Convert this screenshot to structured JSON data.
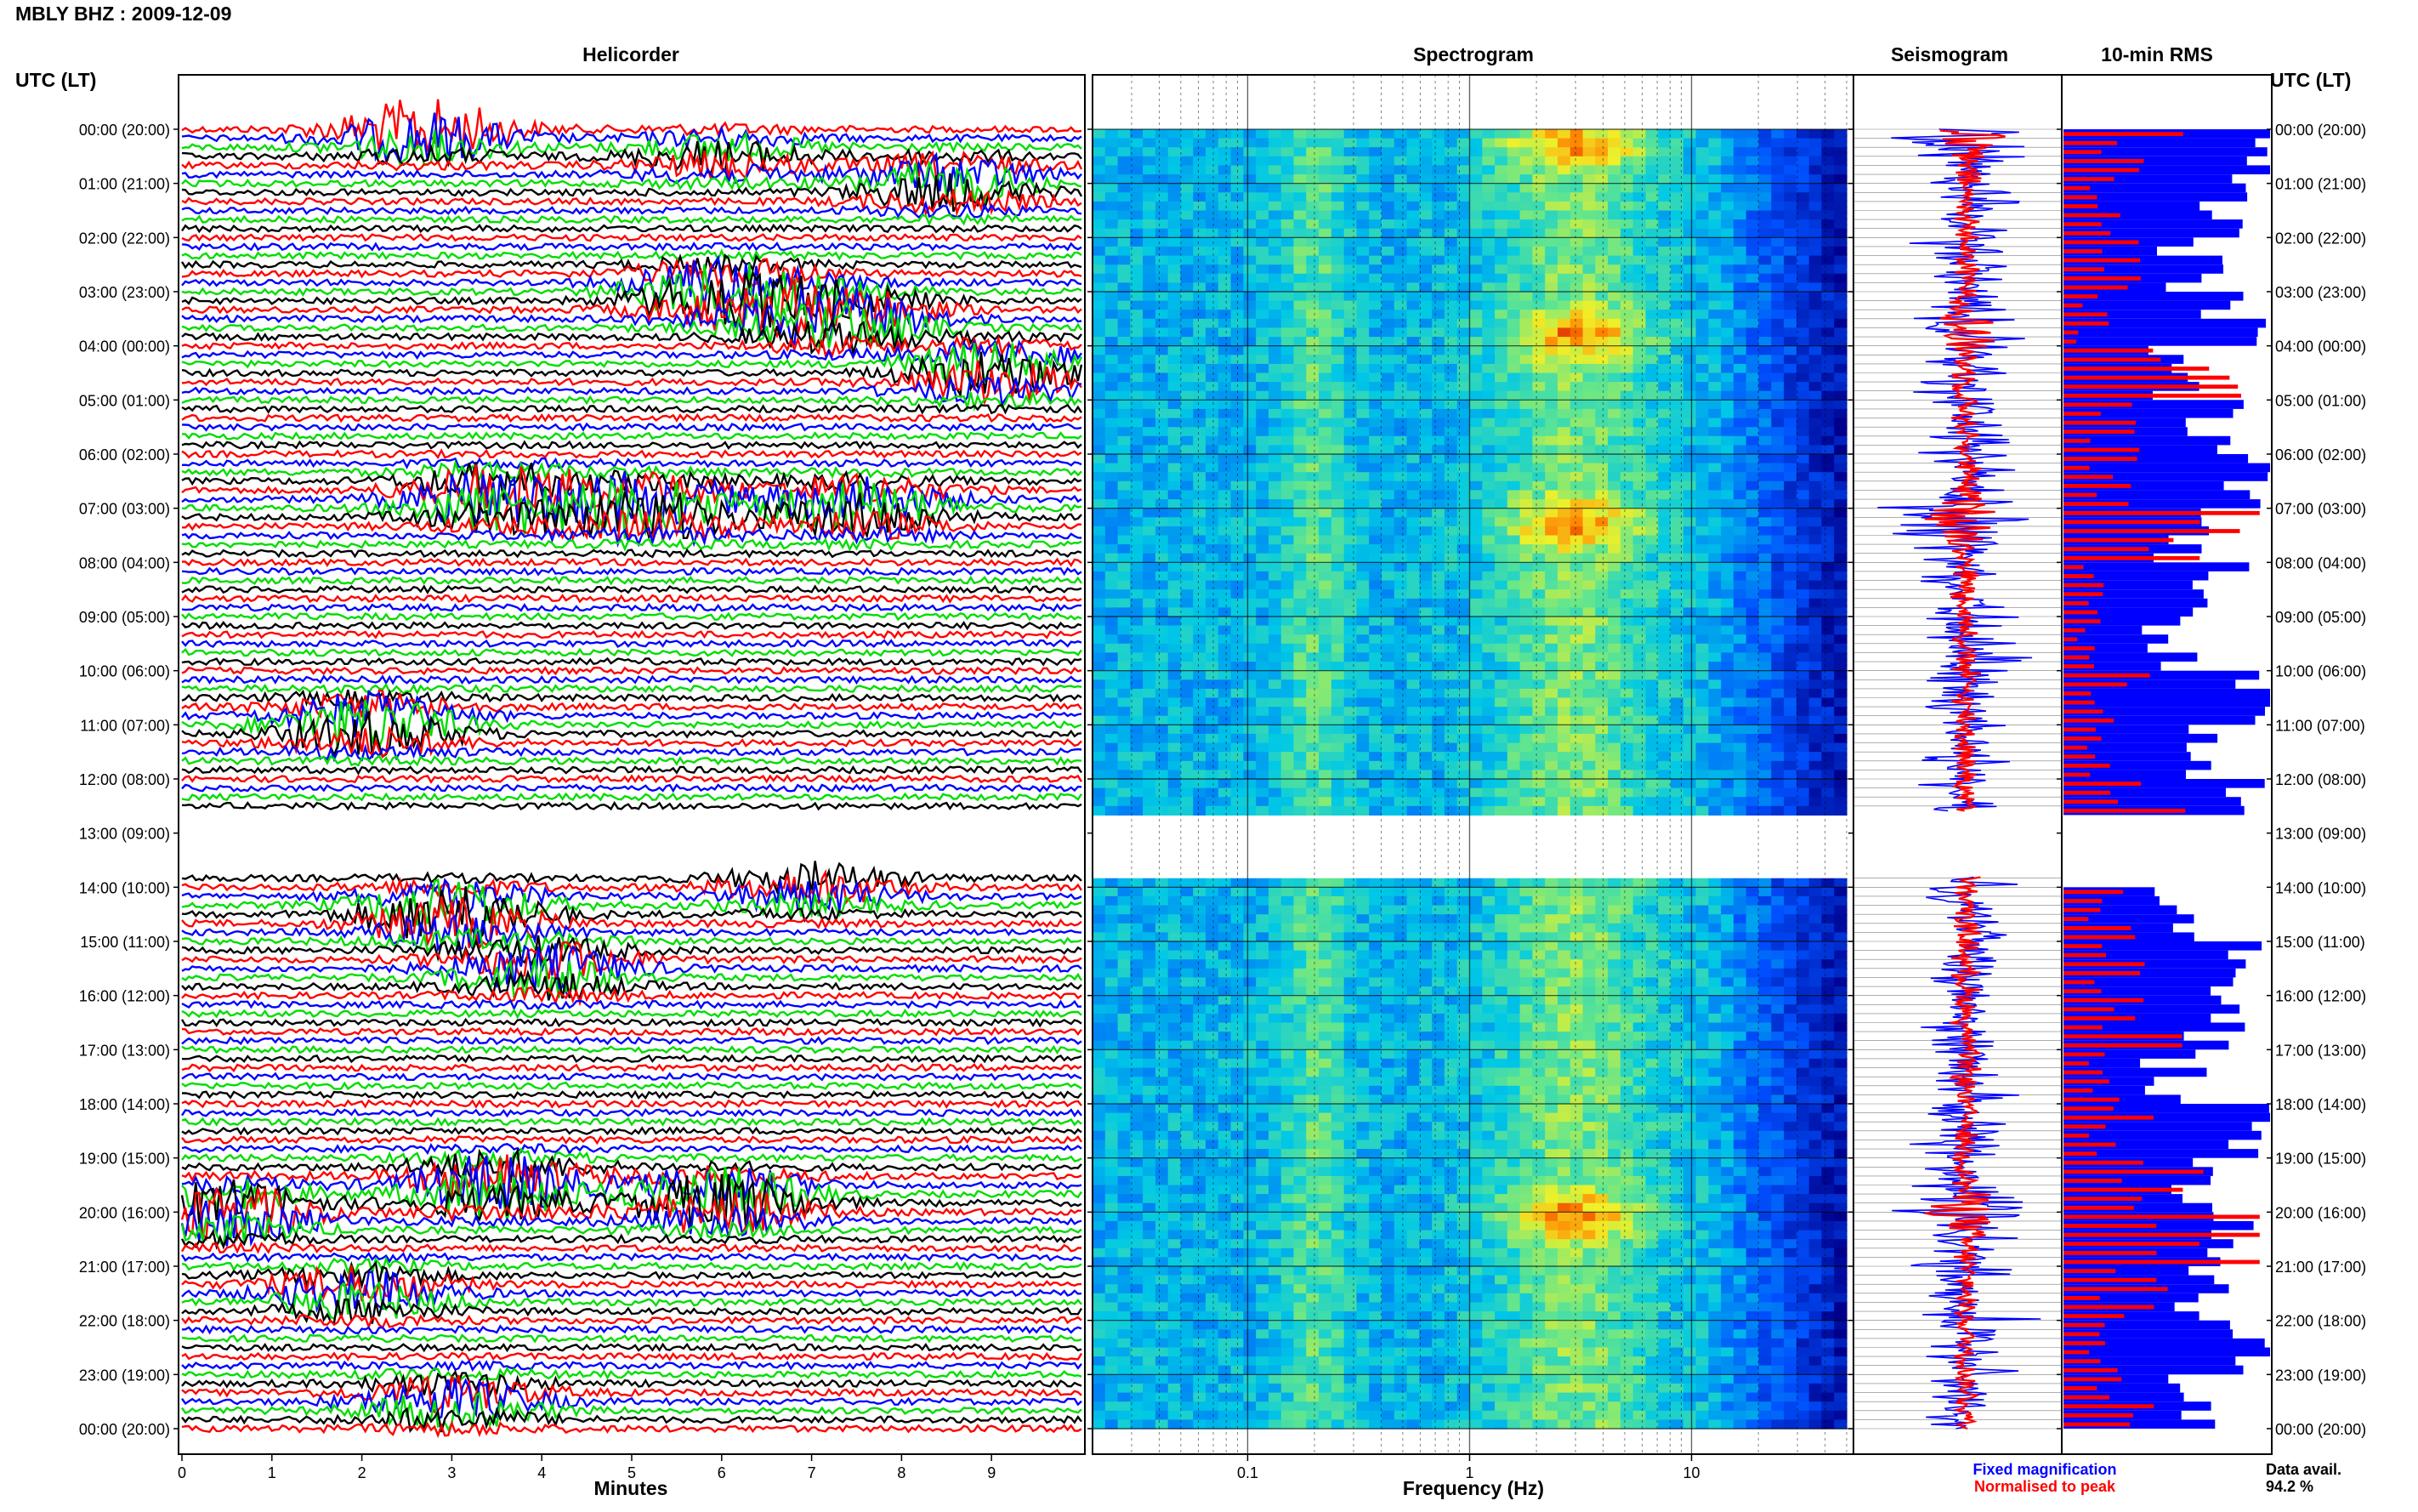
{
  "title": "MBLY BHZ : 2009-12-09",
  "panels": {
    "helicorder": "Helicorder",
    "spectrogram": "Spectrogram",
    "seismogram": "Seismogram",
    "rms": "10-min RMS"
  },
  "utc_label": "UTC (LT)",
  "x_labels": {
    "helicorder": "Minutes",
    "spectrogram": "Frequency (Hz)"
  },
  "legend": {
    "fixed": "Fixed magnification",
    "normalised": "Normalised to peak",
    "data_avail_label": "Data avail.",
    "data_avail_value": "94.2 %"
  },
  "colors": {
    "trace_cycle": [
      "#ff0000",
      "#0000ff",
      "#00dd00",
      "#000000"
    ],
    "fixed": "#0000ff",
    "normalised": "#ff0000"
  },
  "chart_data": [
    {
      "type": "line",
      "panel": "Helicorder",
      "xlabel": "Minutes",
      "xlim": [
        0,
        10
      ],
      "x_ticks": [
        "0",
        "1",
        "2",
        "3",
        "4",
        "5",
        "6",
        "7",
        "8",
        "9"
      ],
      "y_ticks": [
        "00:00 (20:00)",
        "01:00 (21:00)",
        "02:00 (22:00)",
        "03:00 (23:00)",
        "04:00 (00:00)",
        "05:00 (01:00)",
        "06:00 (02:00)",
        "07:00 (03:00)",
        "08:00 (04:00)",
        "09:00 (05:00)",
        "10:00 (06:00)",
        "11:00 (07:00)",
        "12:00 (08:00)",
        "13:00 (09:00)",
        "14:00 (10:00)",
        "15:00 (11:00)",
        "16:00 (12:00)",
        "17:00 (13:00)",
        "18:00 (14:00)",
        "19:00 (15:00)",
        "20:00 (16:00)",
        "21:00 (17:00)",
        "22:00 (18:00)",
        "23:00 (19:00)",
        "00:00 (20:00)"
      ],
      "gap_hours": [
        12.6,
        13.8
      ],
      "events": [
        {
          "hour": 0.0,
          "minute": 2.7,
          "amp": 1.0
        },
        {
          "hour": 0.5,
          "minute": 6.0,
          "amp": 0.5
        },
        {
          "hour": 1.0,
          "minute": 8.5,
          "amp": 0.7
        },
        {
          "hour": 3.0,
          "minute": 6.0,
          "amp": 1.0
        },
        {
          "hour": 3.5,
          "minute": 7.3,
          "amp": 1.0
        },
        {
          "hour": 4.5,
          "minute": 9.0,
          "amp": 0.8
        },
        {
          "hour": 6.8,
          "minute": 3.5,
          "amp": 1.0
        },
        {
          "hour": 7.0,
          "minute": 5.2,
          "amp": 1.0
        },
        {
          "hour": 7.0,
          "minute": 7.5,
          "amp": 0.9
        },
        {
          "hour": 11.0,
          "minute": 2.1,
          "amp": 0.9
        },
        {
          "hour": 14.5,
          "minute": 3.0,
          "amp": 1.0
        },
        {
          "hour": 14.0,
          "minute": 7.0,
          "amp": 0.6
        },
        {
          "hour": 15.5,
          "minute": 4.0,
          "amp": 0.8
        },
        {
          "hour": 19.5,
          "minute": 3.5,
          "amp": 1.0
        },
        {
          "hour": 19.8,
          "minute": 6.0,
          "amp": 1.0
        },
        {
          "hour": 20.0,
          "minute": 0.5,
          "amp": 0.9
        },
        {
          "hour": 21.5,
          "minute": 2.0,
          "amp": 0.7
        },
        {
          "hour": 23.5,
          "minute": 3.0,
          "amp": 0.7
        }
      ]
    },
    {
      "type": "heatmap",
      "panel": "Spectrogram",
      "xlabel": "Frequency (Hz)",
      "x_scale": "log",
      "xlim": [
        0.02,
        50
      ],
      "x_ticks": [
        "0.1",
        "1",
        "10"
      ],
      "y_units": "hours UTC",
      "ylim": [
        0,
        24
      ],
      "gap_hours": [
        12.6,
        13.8
      ],
      "peak_band_hz": [
        1.5,
        5.0
      ],
      "strong_hours": [
        0.2,
        3.7,
        7.2,
        20.0
      ]
    },
    {
      "type": "line",
      "panel": "Seismogram",
      "series": [
        {
          "name": "Fixed magnification",
          "color": "#0000ff"
        },
        {
          "name": "Normalised to peak",
          "color": "#ff0000"
        }
      ],
      "gap_hours": [
        12.6,
        13.8
      ]
    },
    {
      "type": "bar",
      "panel": "10-min RMS",
      "orientation": "horizontal",
      "bin_minutes": 10,
      "hour_ranges": [
        [
          0,
          12.6
        ],
        [
          14,
          24
        ]
      ],
      "blue_relative_levels": [
        0.98,
        0.75,
        0.62,
        0.82,
        0.55,
        0.75,
        0.95,
        0.6,
        0.78,
        0.5,
        0.85,
        0.72,
        0.9,
        0.7,
        0.6,
        0.88,
        0.75,
        0.52,
        0.95,
        0.65,
        0.8,
        0.7,
        0.9,
        0.6
      ],
      "red_relative_levels": [
        0.45,
        0.2,
        0.35,
        0.15,
        0.6,
        0.3,
        0.25,
        0.7,
        0.2,
        0.15,
        0.3,
        0.2,
        0.4,
        0.35,
        0.25,
        0.3,
        0.45,
        0.2,
        0.3,
        0.5,
        0.8,
        0.4,
        0.25,
        0.3
      ]
    }
  ]
}
